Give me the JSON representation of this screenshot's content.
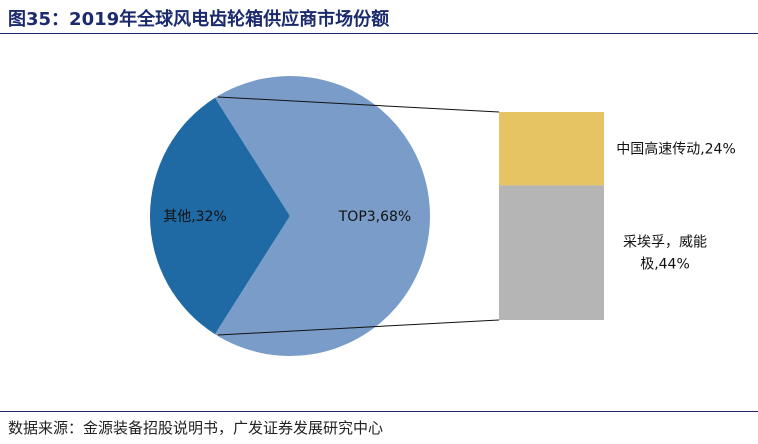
{
  "header": {
    "title": "图35：2019年全球风电齿轮箱供应商市场份额"
  },
  "footer": {
    "source": "数据来源：金源装备招股说明书，广发证券发展研究中心"
  },
  "colors": {
    "pie_other": "#1f6aa5",
    "pie_top3": "#7a9cc8",
    "bar_nanjing": "#e6c463",
    "bar_zf_winergy": "#b5b5b5",
    "rule": "#1a2a6c"
  },
  "chart_data": {
    "type": "bar-of-pie",
    "pie": {
      "slices": [
        {
          "label": "其他,32%",
          "value": 32
        },
        {
          "label": "TOP3,68%",
          "value": 68
        }
      ]
    },
    "breakdown_of": "TOP3,68%",
    "bar": {
      "segments": [
        {
          "label": "中国高速传动,24%",
          "value": 24
        },
        {
          "label_lines": [
            "采埃孚，威能",
            "极,44%"
          ],
          "value": 44
        }
      ]
    }
  }
}
